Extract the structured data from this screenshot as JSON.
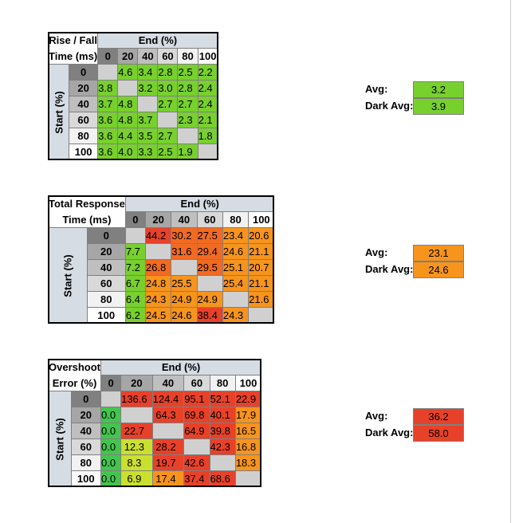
{
  "colors": {
    "diag": "#d0d0d0",
    "header_grey": "#d6dce4",
    "rt_green": "#78d02e",
    "tr_orange": "#f7941d",
    "tr_orange_dark": "#f26a21",
    "tr_red": "#e8412a",
    "os_green": "#43c44e",
    "os_yellow": "#c9e02f",
    "os_orange": "#f7941d",
    "os_red": "#e8412a"
  },
  "tables": [
    {
      "title_line1": "Rise / Fall",
      "title_line2": "Time (ms)",
      "end_label": "End (%)",
      "start_label": "Start (%)",
      "cols": [
        "0",
        "20",
        "40",
        "60",
        "80",
        "100"
      ],
      "rows": [
        "0",
        "20",
        "40",
        "60",
        "80",
        "100"
      ],
      "cells": [
        [
          "",
          "4.6",
          "3.4",
          "2.8",
          "2.5",
          "2.2"
        ],
        [
          "3.8",
          "",
          "3.2",
          "3.0",
          "2.8",
          "2.4"
        ],
        [
          "3.7",
          "4.8",
          "",
          "2.7",
          "2.7",
          "2.4"
        ],
        [
          "3.6",
          "4.8",
          "3.7",
          "",
          "2.3",
          "2.1"
        ],
        [
          "3.6",
          "4.4",
          "3.5",
          "2.7",
          "",
          "1.8"
        ],
        [
          "3.6",
          "4.0",
          "3.3",
          "2.5",
          "1.9",
          ""
        ]
      ],
      "cell_colors": [
        [
          "diag",
          "g",
          "g",
          "g",
          "g",
          "g"
        ],
        [
          "g",
          "diag",
          "g",
          "g",
          "g",
          "g"
        ],
        [
          "g",
          "g",
          "diag",
          "g",
          "g",
          "g"
        ],
        [
          "g",
          "g",
          "g",
          "diag",
          "g",
          "g"
        ],
        [
          "g",
          "g",
          "g",
          "g",
          "diag",
          "g"
        ],
        [
          "g",
          "g",
          "g",
          "g",
          "g",
          "diag"
        ]
      ],
      "avg_label": "Avg:",
      "avg_value": "3.2",
      "avg_color": "g",
      "dark_avg_label": "Dark Avg:",
      "dark_avg_value": "3.9",
      "dark_avg_color": "g"
    },
    {
      "title_line1": "Total Response",
      "title_line2": "Time (ms)",
      "end_label": "End (%)",
      "start_label": "Start (%)",
      "cols": [
        "0",
        "20",
        "40",
        "60",
        "80",
        "100"
      ],
      "rows": [
        "0",
        "20",
        "40",
        "60",
        "80",
        "100"
      ],
      "cells": [
        [
          "",
          "44.2",
          "30.2",
          "27.5",
          "23.4",
          "20.6"
        ],
        [
          "7.7",
          "",
          "31.6",
          "29.4",
          "24.6",
          "21.1"
        ],
        [
          "7.2",
          "26.8",
          "",
          "29.5",
          "25.1",
          "20.7"
        ],
        [
          "6.7",
          "24.8",
          "25.5",
          "",
          "25.4",
          "21.1"
        ],
        [
          "6.4",
          "24.3",
          "24.9",
          "24.9",
          "",
          "21.6"
        ],
        [
          "6.2",
          "24.5",
          "24.6",
          "38.4",
          "24.3",
          ""
        ]
      ],
      "cell_colors": [
        [
          "diag",
          "r",
          "od",
          "od",
          "o",
          "o"
        ],
        [
          "g",
          "diag",
          "od",
          "od",
          "o",
          "o"
        ],
        [
          "g",
          "od",
          "diag",
          "od",
          "o",
          "o"
        ],
        [
          "g",
          "o",
          "o",
          "diag",
          "o",
          "o"
        ],
        [
          "g",
          "o",
          "o",
          "o",
          "diag",
          "o"
        ],
        [
          "g",
          "o",
          "o",
          "r",
          "o",
          "diag"
        ]
      ],
      "avg_label": "Avg:",
      "avg_value": "23.1",
      "avg_color": "o",
      "dark_avg_label": "Dark Avg:",
      "dark_avg_value": "24.6",
      "dark_avg_color": "o"
    },
    {
      "title_line1": "Overshoot",
      "title_line2": "Error (%)",
      "end_label": "End (%)",
      "start_label": "Start (%)",
      "cols": [
        "0",
        "20",
        "40",
        "60",
        "80",
        "100"
      ],
      "rows": [
        "0",
        "20",
        "40",
        "60",
        "80",
        "100"
      ],
      "cells": [
        [
          "",
          "136.6",
          "124.4",
          "95.1",
          "52.1",
          "22.9"
        ],
        [
          "0.0",
          "",
          "64.3",
          "69.8",
          "40.1",
          "17.9"
        ],
        [
          "0.0",
          "22.7",
          "",
          "64.9",
          "39.8",
          "16.5"
        ],
        [
          "0.0",
          "12.3",
          "28.2",
          "",
          "42.3",
          "16.8"
        ],
        [
          "0.0",
          "8.3",
          "19.7",
          "42.6",
          "",
          "18.3"
        ],
        [
          "0.0",
          "6.9",
          "17.4",
          "37.4",
          "68.6",
          ""
        ]
      ],
      "cell_colors": [
        [
          "diag",
          "osr",
          "osr",
          "osr",
          "osr",
          "osr"
        ],
        [
          "osg",
          "diag",
          "osr",
          "osr",
          "osr",
          "oso"
        ],
        [
          "osg",
          "osr",
          "diag",
          "osr",
          "osr",
          "oso"
        ],
        [
          "osg",
          "osy",
          "osr",
          "diag",
          "osr",
          "oso"
        ],
        [
          "osg",
          "osy",
          "osr",
          "osr",
          "diag",
          "oso"
        ],
        [
          "osg",
          "osy",
          "oso",
          "osr",
          "osr",
          "diag"
        ]
      ],
      "avg_label": "Avg:",
      "avg_value": "36.2",
      "avg_color": "osr",
      "dark_avg_label": "Dark Avg:",
      "dark_avg_value": "58.0",
      "dark_avg_color": "osr"
    }
  ]
}
